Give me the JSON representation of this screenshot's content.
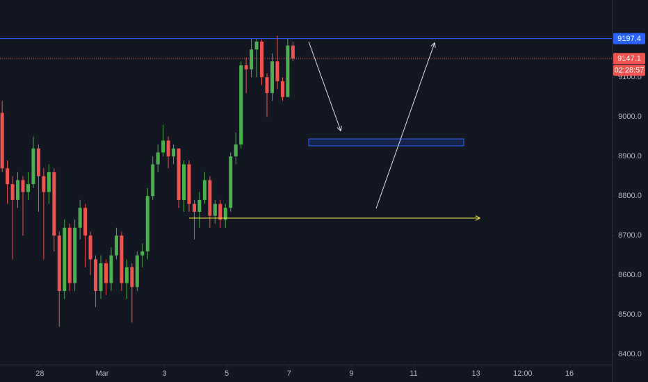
{
  "chart_data": {
    "type": "candlestick",
    "up_color": "#4caf50",
    "down_color": "#ef5350",
    "grid": false,
    "x": [
      -2.21,
      -2.043,
      -1.877,
      -1.71,
      -1.543,
      -1.377,
      -1.21,
      -1.043,
      -0.877,
      -0.71,
      -0.543,
      -0.377,
      -0.21,
      -0.043,
      0.123,
      0.29,
      0.457,
      0.623,
      0.79,
      0.957,
      1.123,
      1.29,
      1.457,
      1.623,
      1.79,
      1.957,
      2.123,
      2.29,
      2.457,
      2.623,
      2.79,
      2.957,
      3.123,
      3.29,
      3.457,
      3.623,
      3.79,
      3.957,
      4.123,
      4.29,
      4.457,
      4.623,
      4.79,
      4.957,
      5.123,
      5.29,
      5.457,
      5.623,
      5.79,
      5.957,
      6.123,
      6.29,
      6.457,
      6.623,
      6.79,
      6.957,
      7.123
    ],
    "open": [
      9010,
      8870,
      8830,
      8790,
      8840,
      8810,
      8830,
      8920,
      8850,
      8810,
      8860,
      8700,
      8560,
      8720,
      8580,
      8720,
      8770,
      8700,
      8640,
      8560,
      8630,
      8580,
      8650,
      8700,
      8580,
      8620,
      8570,
      8650,
      8660,
      8800,
      8880,
      8910,
      8940,
      8900,
      8920,
      8790,
      8880,
      8780,
      8760,
      8790,
      8840,
      8750,
      8780,
      8740,
      8770,
      8900,
      8930,
      9130,
      9120,
      9170,
      9190,
      9100,
      9060,
      9140,
      9090,
      9050,
      9180
    ],
    "high": [
      9040,
      8890,
      8850,
      8860,
      8850,
      8860,
      8950,
      8930,
      8870,
      8880,
      8870,
      8710,
      8740,
      8730,
      8740,
      8790,
      8780,
      8710,
      8650,
      8650,
      8640,
      8670,
      8720,
      8710,
      8640,
      8630,
      8660,
      8680,
      8820,
      8900,
      8930,
      8980,
      8950,
      8930,
      8920,
      8890,
      8890,
      8790,
      8810,
      8860,
      8850,
      8790,
      8790,
      8780,
      8910,
      8960,
      9140,
      9150,
      9197,
      9197,
      9195,
      9110,
      9160,
      9205,
      9100,
      9197,
      9190
    ],
    "low": [
      8860,
      8780,
      8640,
      8770,
      8700,
      8790,
      8820,
      8760,
      8640,
      8780,
      8660,
      8470,
      8540,
      8560,
      8560,
      8690,
      8620,
      8600,
      8520,
      8540,
      8550,
      8560,
      8640,
      8560,
      8540,
      8480,
      8560,
      8620,
      8640,
      8790,
      8860,
      8900,
      8870,
      8880,
      8770,
      8760,
      8760,
      8690,
      8720,
      8780,
      8720,
      8730,
      8720,
      8720,
      8760,
      8880,
      8920,
      9060,
      9100,
      9100,
      9080,
      9000,
      9040,
      9070,
      9040,
      9050,
      9140
    ],
    "close": [
      8870,
      8830,
      8790,
      8840,
      8810,
      8830,
      8920,
      8850,
      8810,
      8860,
      8700,
      8560,
      8720,
      8580,
      8720,
      8770,
      8700,
      8640,
      8560,
      8630,
      8580,
      8650,
      8700,
      8580,
      8620,
      8570,
      8650,
      8660,
      8800,
      8880,
      8910,
      8940,
      8900,
      8920,
      8790,
      8880,
      8780,
      8760,
      8790,
      8840,
      8750,
      8780,
      8740,
      8770,
      8900,
      8930,
      9130,
      9120,
      9170,
      9190,
      9100,
      9060,
      9140,
      9090,
      9050,
      9180,
      9147.1
    ],
    "xlim": [
      -2.28,
      17.36
    ],
    "xticks": [
      {
        "value": -1,
        "label": "28"
      },
      {
        "value": 1,
        "label": "Mar"
      },
      3,
      5,
      7,
      9,
      11,
      13,
      {
        "value": 14.5,
        "label": "12:00"
      },
      16
    ],
    "ylim": [
      8374,
      9295
    ],
    "yticks": [
      {
        "value": 8400,
        "label": "8400.0"
      },
      {
        "value": 8500,
        "label": "8500.0"
      },
      {
        "value": 8600,
        "label": "8600.0"
      },
      {
        "value": 8700,
        "label": "8700.0"
      },
      {
        "value": 8800,
        "label": "8800.0"
      },
      {
        "value": 8900,
        "label": "8900.0"
      },
      {
        "value": 9000,
        "label": "9000.0"
      },
      {
        "value": 9100,
        "label": "9100.0"
      }
    ],
    "price_lines": [
      {
        "value": 9197.4,
        "color": "#2962ff"
      }
    ],
    "countdown": "02:28:57"
  }
}
